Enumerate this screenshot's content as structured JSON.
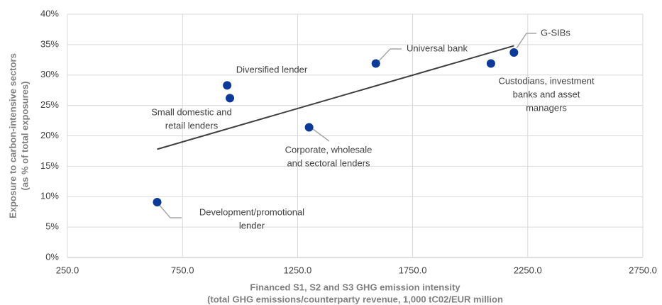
{
  "chart_data": {
    "type": "scatter",
    "x": [
      640,
      944,
      956,
      1300,
      1590,
      2090,
      2190
    ],
    "y": [
      9.1,
      28.3,
      26.2,
      21.4,
      31.9,
      31.9,
      33.7
    ],
    "color": "#0b3a9a",
    "trendline": {
      "x": [
        640,
        2190
      ],
      "y": [
        17.8,
        34.8
      ],
      "color": "#404040"
    },
    "xlim": [
      250,
      2750
    ],
    "xticks": [
      {
        "value": 250,
        "label": "250.0"
      },
      {
        "value": 750,
        "label": "750.0"
      },
      {
        "value": 1250,
        "label": "1250.0"
      },
      {
        "value": 1750,
        "label": "1750.0"
      },
      {
        "value": 2250,
        "label": "2250.0"
      },
      {
        "value": 2750,
        "label": "2750.0"
      }
    ],
    "ylim": [
      0,
      40
    ],
    "yticks": [
      {
        "value": 0,
        "label": "0%"
      },
      {
        "value": 5,
        "label": "5%"
      },
      {
        "value": 10,
        "label": "10%"
      },
      {
        "value": 15,
        "label": "15%"
      },
      {
        "value": 20,
        "label": "20%"
      },
      {
        "value": 25,
        "label": "25%"
      },
      {
        "value": 30,
        "label": "30%"
      },
      {
        "value": 35,
        "label": "35%"
      },
      {
        "value": 40,
        "label": "40%"
      }
    ],
    "grid": true,
    "x_label": [
      "Financed S1, S2 and S3 GHG emission intensity",
      "(total GHG emissions/counterparty revenue, 1,000 tC02/EUR million"
    ],
    "y_label": [
      "Exposure to carbon-intensive sectors",
      "(as % of total exposures)"
    ],
    "annotations": [
      {
        "lines": [
          "Development/promotional",
          "lender"
        ]
      },
      {
        "lines": [
          "Diversified lender"
        ]
      },
      {
        "lines": [
          "Small domestic and",
          "retail lenders"
        ]
      },
      {
        "lines": [
          "Corporate, wholesale",
          "and sectoral lenders"
        ]
      },
      {
        "lines": [
          "Universal bank"
        ]
      },
      {
        "lines": [
          "Custodians, investment",
          "banks and asset",
          "managers"
        ]
      },
      {
        "lines": [
          "G-SIBs"
        ]
      }
    ]
  }
}
